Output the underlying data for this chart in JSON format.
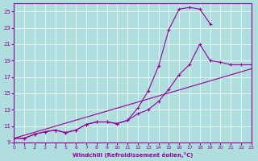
{
  "xlabel": "Windchill (Refroidissement éolien,°C)",
  "bg_color": "#aedede",
  "line_color": "#990099",
  "grid_color": "#ffffff",
  "xlim": [
    0,
    23
  ],
  "ylim": [
    9,
    26
  ],
  "yticks": [
    9,
    11,
    13,
    15,
    17,
    19,
    21,
    23,
    25
  ],
  "xticks": [
    0,
    1,
    2,
    3,
    4,
    5,
    6,
    7,
    8,
    9,
    10,
    11,
    12,
    13,
    14,
    15,
    16,
    17,
    18,
    19,
    20,
    21,
    22,
    23
  ],
  "series1_x": [
    0,
    1,
    2,
    3,
    4,
    5,
    6,
    7,
    8,
    9,
    10,
    11,
    12,
    13,
    14,
    15,
    16,
    17,
    18,
    19
  ],
  "series1_y": [
    9.5,
    9.5,
    10.0,
    10.3,
    10.5,
    10.2,
    10.5,
    11.2,
    11.5,
    11.5,
    11.3,
    11.7,
    13.2,
    15.3,
    18.3,
    22.8,
    25.3,
    25.5,
    25.3,
    23.5
  ],
  "series2_x": [
    0,
    1,
    2,
    3,
    4,
    5,
    6,
    7,
    8,
    9,
    10,
    11,
    12,
    13,
    14,
    15,
    16,
    17,
    18,
    19,
    20,
    21,
    22,
    23
  ],
  "series2_y": [
    9.5,
    9.5,
    10.0,
    10.3,
    10.5,
    10.2,
    10.5,
    11.2,
    11.5,
    11.5,
    11.3,
    11.7,
    12.5,
    13.0,
    14.0,
    15.5,
    17.3,
    18.5,
    21.0,
    19.0,
    18.8,
    18.5,
    18.5,
    18.5
  ],
  "series3_x": [
    0,
    23
  ],
  "series3_y": [
    9.5,
    18.0
  ]
}
